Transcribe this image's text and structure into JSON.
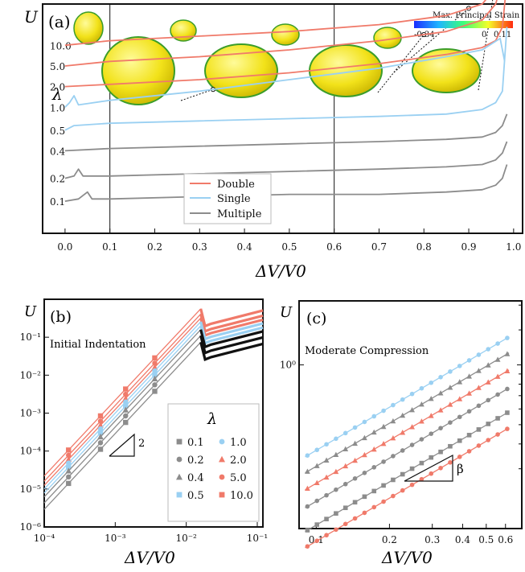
{
  "colors": {
    "double": "#f07a6a",
    "single": "#9ad0f2",
    "multiple": "#8c8c8c",
    "black": "#111111"
  },
  "chart_data": [
    {
      "id": "a",
      "type": "line",
      "panel_label": "(a)",
      "ylabel": "U",
      "xlabel": "ΔV/V0",
      "xlim": [
        -0.05,
        1.02
      ],
      "xticks": [
        "0.0",
        "0.1",
        "0.2",
        "0.3",
        "0.4",
        "0.5",
        "0.6",
        "0.7",
        "0.8",
        "0.9",
        "1.0"
      ],
      "vlines": [
        0.1,
        0.6
      ],
      "lambda_header": "λ",
      "lambda_labels": [
        "10.0",
        "5.0",
        "2.0",
        "1.0",
        "0.5",
        "0.4",
        "0.2",
        "0.1"
      ],
      "colorbar": {
        "title": "Max. Principal Strain",
        "min_label": "-0.34",
        "zero_label": "0",
        "max_label": "0.11"
      },
      "legend": [
        {
          "name": "Double",
          "color": "double"
        },
        {
          "name": "Single",
          "color": "single"
        },
        {
          "name": "Multiple",
          "color": "multiple"
        }
      ],
      "snapshots_at": [
        0.33,
        0.8,
        0.9,
        0.98
      ],
      "series": [
        {
          "lambda": "10.0",
          "color": "double",
          "x": [
            0.0,
            0.1,
            0.3,
            0.5,
            0.7,
            0.85,
            0.93,
            0.96,
            0.975,
            0.985
          ],
          "y": [
            0.82,
            0.84,
            0.86,
            0.88,
            0.91,
            0.95,
            1.0,
            1.07,
            1.2,
            1.5
          ]
        },
        {
          "lambda": "5.0",
          "color": "double",
          "x": [
            0.0,
            0.1,
            0.3,
            0.5,
            0.7,
            0.85,
            0.93,
            0.96,
            0.975,
            0.985
          ],
          "y": [
            0.73,
            0.75,
            0.77,
            0.8,
            0.84,
            0.88,
            0.93,
            1.0,
            1.1,
            1.45
          ]
        },
        {
          "lambda": "2.0",
          "color": "double",
          "x": [
            0.0,
            0.1,
            0.3,
            0.5,
            0.7,
            0.85,
            0.93,
            0.96,
            0.975,
            0.985
          ],
          "y": [
            0.64,
            0.65,
            0.67,
            0.7,
            0.74,
            0.78,
            0.81,
            0.84,
            0.9,
            1.1
          ]
        },
        {
          "lambda": "1.0",
          "color": "single",
          "x": [
            0.0,
            0.01,
            0.02,
            0.03,
            0.1,
            0.3,
            0.5,
            0.7,
            0.85,
            0.93,
            0.97,
            0.98
          ],
          "y": [
            0.55,
            0.57,
            0.6,
            0.56,
            0.58,
            0.62,
            0.67,
            0.72,
            0.77,
            0.8,
            0.85,
            0.75
          ]
        },
        {
          "lambda": "0.5",
          "color": "single",
          "x": [
            0.0,
            0.02,
            0.1,
            0.3,
            0.5,
            0.7,
            0.85,
            0.93,
            0.96,
            0.975,
            0.985
          ],
          "y": [
            0.45,
            0.47,
            0.48,
            0.49,
            0.5,
            0.51,
            0.52,
            0.54,
            0.57,
            0.62,
            0.9
          ]
        },
        {
          "lambda": "0.4",
          "color": "multiple",
          "x": [
            0.0,
            0.1,
            0.3,
            0.5,
            0.7,
            0.85,
            0.93,
            0.96,
            0.975,
            0.985
          ],
          "y": [
            0.36,
            0.37,
            0.38,
            0.39,
            0.4,
            0.41,
            0.42,
            0.44,
            0.47,
            0.52
          ]
        },
        {
          "lambda": "0.2",
          "color": "multiple",
          "x": [
            0.0,
            0.02,
            0.03,
            0.04,
            0.1,
            0.3,
            0.5,
            0.7,
            0.85,
            0.93,
            0.96,
            0.975,
            0.985
          ],
          "y": [
            0.24,
            0.25,
            0.28,
            0.25,
            0.25,
            0.26,
            0.27,
            0.28,
            0.29,
            0.3,
            0.32,
            0.35,
            0.4
          ]
        },
        {
          "lambda": "0.1",
          "color": "multiple",
          "x": [
            0.0,
            0.03,
            0.05,
            0.06,
            0.1,
            0.3,
            0.5,
            0.7,
            0.85,
            0.93,
            0.96,
            0.975,
            0.985
          ],
          "y": [
            0.14,
            0.15,
            0.18,
            0.15,
            0.15,
            0.16,
            0.17,
            0.17,
            0.18,
            0.19,
            0.21,
            0.24,
            0.3
          ]
        }
      ]
    },
    {
      "id": "b",
      "type": "scatter",
      "panel_label": "(b)",
      "title": "Initial Indentation",
      "ylabel": "U",
      "xlabel": "ΔV/V0",
      "xscale": "log",
      "yscale": "log",
      "xlim": [
        0.0001,
        0.12
      ],
      "ylim": [
        1e-06,
        1
      ],
      "xticks": [
        {
          "v": 0.0001,
          "l": "10⁻⁴"
        },
        {
          "v": 0.001,
          "l": "10⁻³"
        },
        {
          "v": 0.01,
          "l": "10⁻²"
        },
        {
          "v": 0.1,
          "l": "10⁻¹"
        }
      ],
      "yticks": [
        {
          "v": 1e-06,
          "l": "10⁻⁶"
        },
        {
          "v": 1e-05,
          "l": "10⁻⁵"
        },
        {
          "v": 0.0001,
          "l": "10⁻⁴"
        },
        {
          "v": 0.001,
          "l": "10⁻³"
        },
        {
          "v": 0.01,
          "l": "10⁻²"
        },
        {
          "v": 0.1,
          "l": "10⁻¹"
        }
      ],
      "slope_label": "2",
      "legend_header": "λ",
      "legend": [
        {
          "name": "0.1",
          "color": "multiple",
          "marker": "square"
        },
        {
          "name": "1.0",
          "color": "single",
          "marker": "circle"
        },
        {
          "name": "0.2",
          "color": "multiple",
          "marker": "circle"
        },
        {
          "name": "2.0",
          "color": "double",
          "marker": "triangle"
        },
        {
          "name": "0.4",
          "color": "multiple",
          "marker": "triangle"
        },
        {
          "name": "5.0",
          "color": "double",
          "marker": "circle"
        },
        {
          "name": "0.5",
          "color": "single",
          "marker": "square"
        },
        {
          "name": "10.0",
          "color": "double",
          "marker": "square"
        }
      ],
      "marker_x": [
        0.00022,
        0.00062,
        0.0014,
        0.0036
      ],
      "series": [
        {
          "lambda": "10.0",
          "color": "double",
          "marker": "square",
          "c": 2200
        },
        {
          "lambda": "5.0",
          "color": "double",
          "marker": "circle",
          "c": 1600
        },
        {
          "lambda": "2.0",
          "color": "double",
          "marker": "triangle",
          "c": 1250
        },
        {
          "lambda": "1.0",
          "color": "single",
          "marker": "circle",
          "c": 1000
        },
        {
          "lambda": "0.5",
          "color": "single",
          "marker": "square",
          "c": 780
        },
        {
          "lambda": "0.4",
          "color": "multiple",
          "marker": "triangle",
          "c": 620
        },
        {
          "lambda": "0.2",
          "color": "multiple",
          "marker": "circle",
          "c": 430
        },
        {
          "lambda": "0.1",
          "color": "multiple",
          "marker": "square",
          "c": 290
        }
      ]
    },
    {
      "id": "c",
      "type": "scatter",
      "panel_label": "(c)",
      "title": "Moderate Compression",
      "ylabel": "U",
      "xlabel": "ΔV/V0",
      "xscale": "log",
      "yscale": "log",
      "xlim": [
        0.085,
        0.7
      ],
      "ylim": [
        0.15,
        2.1
      ],
      "xticks": [
        {
          "v": 0.1,
          "l": "0.1"
        },
        {
          "v": 0.2,
          "l": "0.2"
        },
        {
          "v": 0.3,
          "l": "0.3"
        },
        {
          "v": 0.4,
          "l": "0.4"
        },
        {
          "v": 0.5,
          "l": "0.5"
        },
        {
          "v": 0.6,
          "l": "0.6"
        }
      ],
      "yticks": [
        {
          "v": 1,
          "l": "10⁰"
        }
      ],
      "slope_label": "β",
      "series": [
        {
          "lambda": "1.0",
          "color": "single",
          "marker": "circle",
          "a": 1.95,
          "b": 0.72
        },
        {
          "lambda": "0.4",
          "color": "multiple",
          "marker": "triangle",
          "a": 1.62,
          "b": 0.72
        },
        {
          "lambda": "2.0",
          "color": "double",
          "marker": "triangle",
          "a": 1.33,
          "b": 0.72
        },
        {
          "lambda": "0.2",
          "color": "multiple",
          "marker": "circle",
          "a": 1.08,
          "b": 0.72
        },
        {
          "lambda": "0.1",
          "color": "multiple",
          "marker": "square",
          "a": 0.82,
          "b": 0.72
        },
        {
          "lambda": "5.0",
          "color": "double",
          "marker": "circle",
          "a": 0.68,
          "b": 0.72
        }
      ]
    }
  ]
}
